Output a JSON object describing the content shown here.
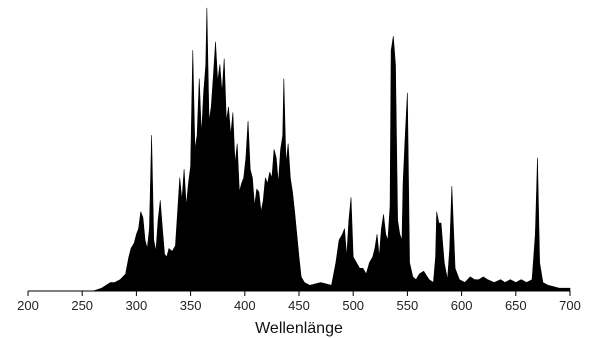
{
  "chart_data": {
    "type": "area",
    "title": "",
    "xlabel": "Wellenlänge",
    "ylabel": "",
    "xlim": [
      200,
      700
    ],
    "ylim": [
      0,
      1
    ],
    "grid": false,
    "legend": "none",
    "xticks": [
      200,
      250,
      300,
      350,
      400,
      450,
      500,
      550,
      600,
      650,
      700
    ],
    "fill_color": "#000000",
    "series": [
      {
        "x": [
          200,
          260,
          268,
          272,
          276,
          280,
          285,
          290,
          293,
          295,
          298,
          300,
          302,
          304,
          306,
          308,
          310,
          312,
          314,
          316,
          318,
          320,
          322,
          324,
          326,
          328,
          330,
          333,
          336,
          338,
          340,
          342,
          344,
          346,
          348,
          350,
          352,
          354,
          356,
          358,
          360,
          362,
          364,
          365,
          367,
          369,
          371,
          373,
          375,
          377,
          379,
          381,
          383,
          385,
          387,
          389,
          391,
          393,
          395,
          397,
          399,
          401,
          403,
          405,
          407,
          409,
          411,
          413,
          415,
          417,
          419,
          421,
          423,
          425,
          427,
          429,
          431,
          433,
          435,
          436,
          438,
          440,
          442,
          444,
          446,
          448,
          450,
          452,
          455,
          460,
          470,
          480,
          484,
          487,
          490,
          492,
          494,
          496,
          498,
          500,
          503,
          506,
          509,
          512,
          515,
          518,
          520,
          522,
          524,
          526,
          528,
          530,
          532,
          534,
          535,
          537,
          539,
          541,
          543,
          545,
          546,
          548,
          550,
          552,
          555,
          558,
          561,
          565,
          570,
          574,
          576,
          577,
          579,
          581,
          584,
          587,
          589,
          591,
          594,
          598,
          603,
          608,
          612,
          616,
          620,
          624,
          630,
          636,
          640,
          645,
          650,
          655,
          660,
          665,
          668,
          670,
          672,
          675,
          680,
          690,
          700
        ],
        "y": [
          0,
          0,
          0.01,
          0.02,
          0.03,
          0.03,
          0.04,
          0.06,
          0.12,
          0.15,
          0.17,
          0.2,
          0.22,
          0.28,
          0.26,
          0.18,
          0.15,
          0.22,
          0.55,
          0.18,
          0.14,
          0.25,
          0.32,
          0.22,
          0.13,
          0.12,
          0.15,
          0.14,
          0.16,
          0.28,
          0.4,
          0.32,
          0.43,
          0.3,
          0.38,
          0.44,
          0.85,
          0.5,
          0.55,
          0.75,
          0.55,
          0.7,
          0.8,
          1.0,
          0.6,
          0.65,
          0.76,
          0.88,
          0.74,
          0.8,
          0.7,
          0.82,
          0.6,
          0.65,
          0.55,
          0.63,
          0.45,
          0.52,
          0.35,
          0.38,
          0.4,
          0.47,
          0.6,
          0.43,
          0.4,
          0.3,
          0.36,
          0.35,
          0.28,
          0.32,
          0.4,
          0.38,
          0.42,
          0.4,
          0.5,
          0.47,
          0.38,
          0.5,
          0.55,
          0.75,
          0.45,
          0.52,
          0.4,
          0.35,
          0.28,
          0.2,
          0.12,
          0.05,
          0.03,
          0.02,
          0.03,
          0.02,
          0.1,
          0.18,
          0.2,
          0.22,
          0.12,
          0.25,
          0.33,
          0.12,
          0.1,
          0.08,
          0.08,
          0.06,
          0.1,
          0.12,
          0.15,
          0.2,
          0.12,
          0.22,
          0.27,
          0.2,
          0.18,
          0.3,
          0.85,
          0.9,
          0.8,
          0.25,
          0.2,
          0.18,
          0.38,
          0.55,
          0.7,
          0.1,
          0.05,
          0.04,
          0.06,
          0.07,
          0.04,
          0.03,
          0.12,
          0.28,
          0.24,
          0.24,
          0.1,
          0.04,
          0.15,
          0.37,
          0.08,
          0.04,
          0.03,
          0.05,
          0.04,
          0.04,
          0.05,
          0.04,
          0.03,
          0.04,
          0.03,
          0.04,
          0.03,
          0.04,
          0.03,
          0.04,
          0.2,
          0.47,
          0.1,
          0.03,
          0.02,
          0.01,
          0.01
        ]
      }
    ]
  }
}
